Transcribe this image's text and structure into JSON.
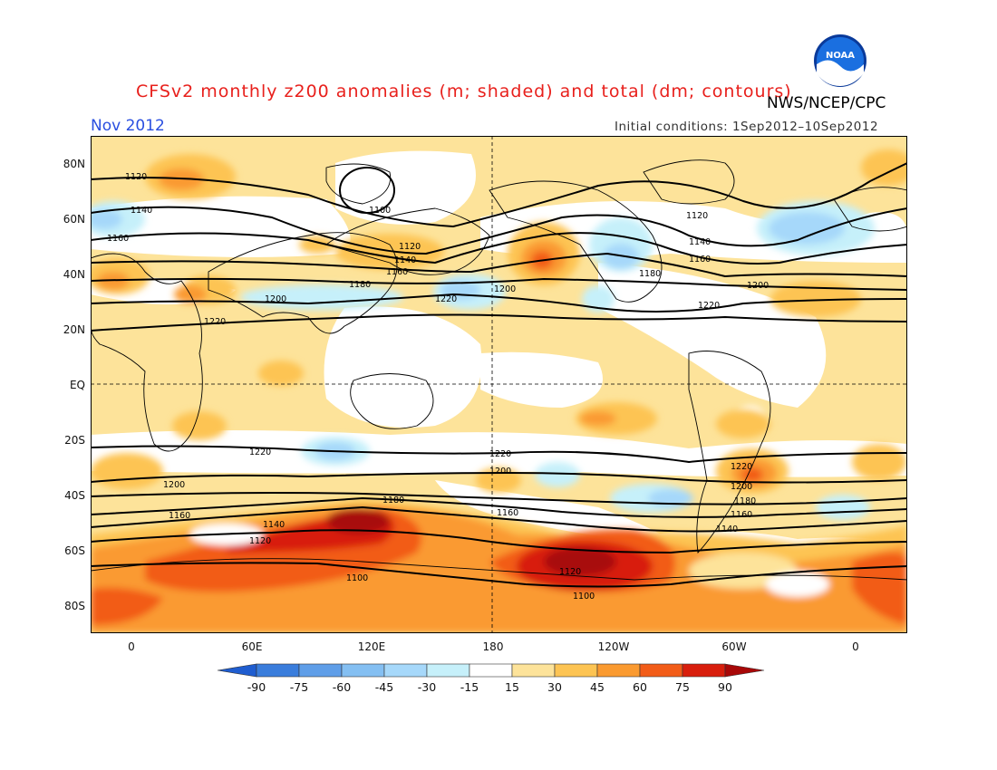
{
  "header": {
    "title": "CFSv2 monthly z200 anomalies (m; shaded) and total (dm; contours)",
    "agency": "NWS/NCEP/CPC",
    "month": "Nov 2012",
    "initial_conditions": "Initial conditions: 1Sep2012–10Sep2012",
    "logo_text": "NOAA"
  },
  "map": {
    "projection": "cylindrical-equidistant",
    "lon_range": [
      -20,
      20
    ],
    "lat_range": [
      -90,
      90
    ],
    "lat_labels": [
      "80N",
      "60N",
      "40N",
      "20N",
      "EQ",
      "20S",
      "40S",
      "60S",
      "80S"
    ],
    "lon_labels": [
      "0",
      "60E",
      "120E",
      "180",
      "120W",
      "60W",
      "0"
    ],
    "contour_labels": [
      "1100",
      "1120",
      "1140",
      "1160",
      "1180",
      "1200",
      "1220"
    ],
    "colors": {
      "ocean_land_background": "#ffffff",
      "plus15": "#fde39a",
      "plus30": "#fdc453",
      "plus45": "#fa9a30",
      "plus60": "#f25c18",
      "plus75": "#d81e0c",
      "plus90": "#a80808",
      "minus15": "#c6f0fa",
      "minus30": "#a6d8fa",
      "minus45": "#84bff2",
      "minus60": "#5f9ee8",
      "minus75": "#3a7ddc",
      "minus90": "#1f5dd0"
    }
  },
  "colorbar": {
    "labels": [
      "-90",
      "-75",
      "-60",
      "-45",
      "-30",
      "-15",
      "15",
      "30",
      "45",
      "60",
      "75",
      "90"
    ],
    "colors": [
      "#1f5dd0",
      "#3a7ddc",
      "#5f9ee8",
      "#84bff2",
      "#a6d8fa",
      "#c6f0fa",
      "#ffffff",
      "#fde39a",
      "#fdc453",
      "#fa9a30",
      "#f25c18",
      "#d81e0c",
      "#a80808"
    ]
  }
}
